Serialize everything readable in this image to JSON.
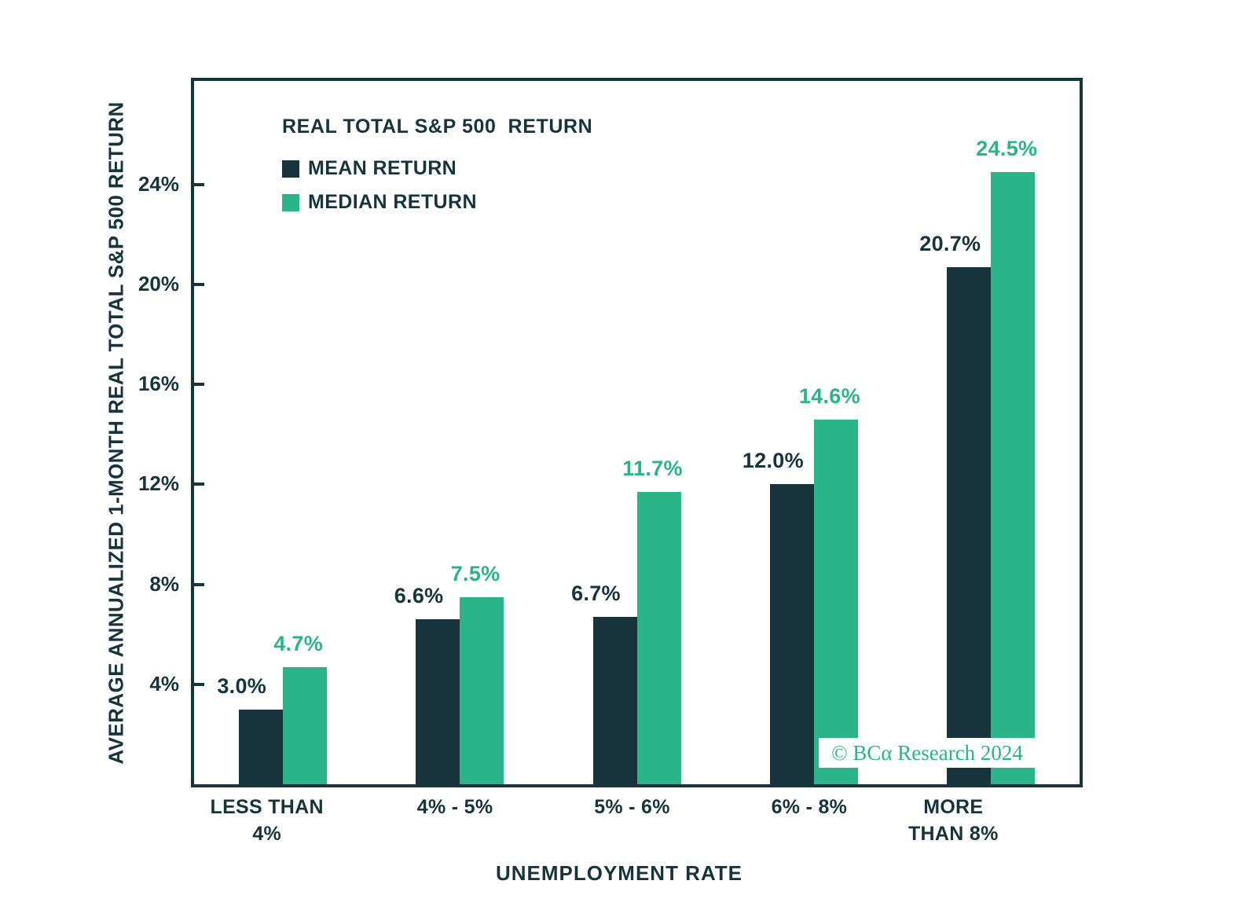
{
  "page": {
    "background": "#ffffff"
  },
  "chart_data": {
    "type": "bar",
    "title": "REAL TOTAL S&P 500  RETURN",
    "xlabel": "UNEMPLOYMENT RATE",
    "ylabel": "AVERAGE ANNUALIZED 1-MONTH REAL TOTAL S&P 500 RETURN",
    "categories": [
      "LESS THAN\n4%",
      "4% - 5%",
      "5% - 6%",
      "6% - 8%",
      "MORE\nTHAN 8%"
    ],
    "series": [
      {
        "name": "MEAN RETURN",
        "color": "#17343c",
        "values": [
          3.0,
          6.6,
          6.7,
          12.0,
          20.7
        ],
        "labels": [
          "3.0%",
          "6.6%",
          "6.7%",
          "12.0%",
          "20.7%"
        ]
      },
      {
        "name": "MEDIAN RETURN",
        "color": "#2cb489",
        "values": [
          4.7,
          7.5,
          11.7,
          14.6,
          24.5
        ],
        "labels": [
          "4.7%",
          "7.5%",
          "11.7%",
          "14.6%",
          "24.5%"
        ]
      }
    ],
    "yticks": [
      4,
      8,
      12,
      16,
      20,
      24
    ],
    "ytick_labels": [
      "4%",
      "8%",
      "12%",
      "16%",
      "20%",
      "24%"
    ],
    "ylim": [
      0,
      28.15
    ],
    "grid": false,
    "legend_position": "top-left-inside",
    "axis_color": "#17343c",
    "watermark": "© BCα Research 2024",
    "watermark_color": "#2cb489"
  }
}
